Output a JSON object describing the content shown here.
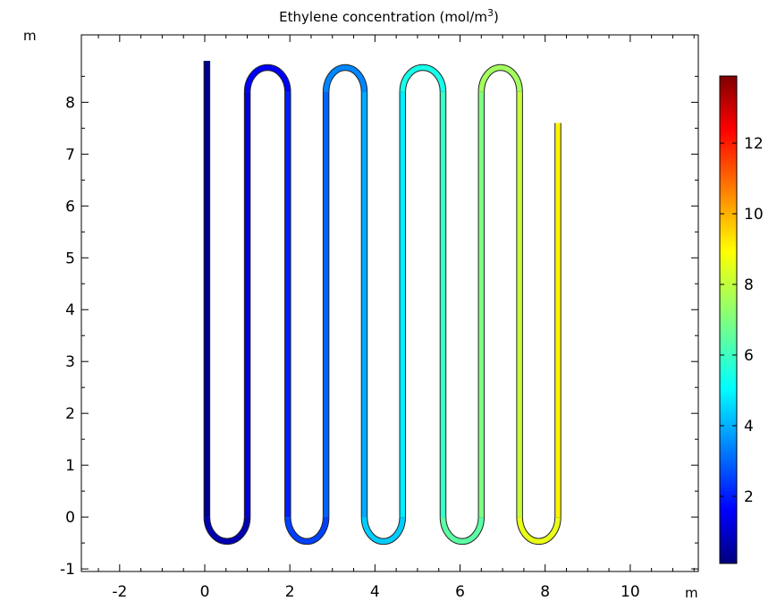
{
  "chart_data": {
    "type": "heatmap",
    "title": "Ethylene concentration (mol/m",
    "title_superscript": "3",
    "title_suffix": ")",
    "xlabel": "m",
    "ylabel": "m",
    "xlim": [
      -2.9,
      11.6
    ],
    "ylim": [
      -1.05,
      9.3
    ],
    "x_ticks": [
      -2,
      0,
      2,
      4,
      6,
      8,
      10
    ],
    "y_ticks": [
      -1,
      0,
      1,
      2,
      3,
      4,
      5,
      6,
      7,
      8
    ],
    "grid": false,
    "colormap": "jet",
    "colorbar": {
      "range": [
        0.1,
        13.9
      ],
      "ticks": [
        2,
        4,
        6,
        8,
        10,
        12
      ],
      "placement": "right"
    },
    "geometry": {
      "description": "serpentine tubular reactor",
      "pipe_legs_x": [
        0.05,
        1.0,
        1.95,
        2.85,
        3.75,
        4.65,
        5.6,
        6.5,
        7.4,
        8.3
      ],
      "top_y": 8.2,
      "bottom_y": 0.0,
      "inlet_top_y": 8.8,
      "outlet_top_y": 7.6,
      "bend_radius": 0.47,
      "concentration_inlet": 0.3,
      "concentration_outlet": 8.9
    }
  }
}
